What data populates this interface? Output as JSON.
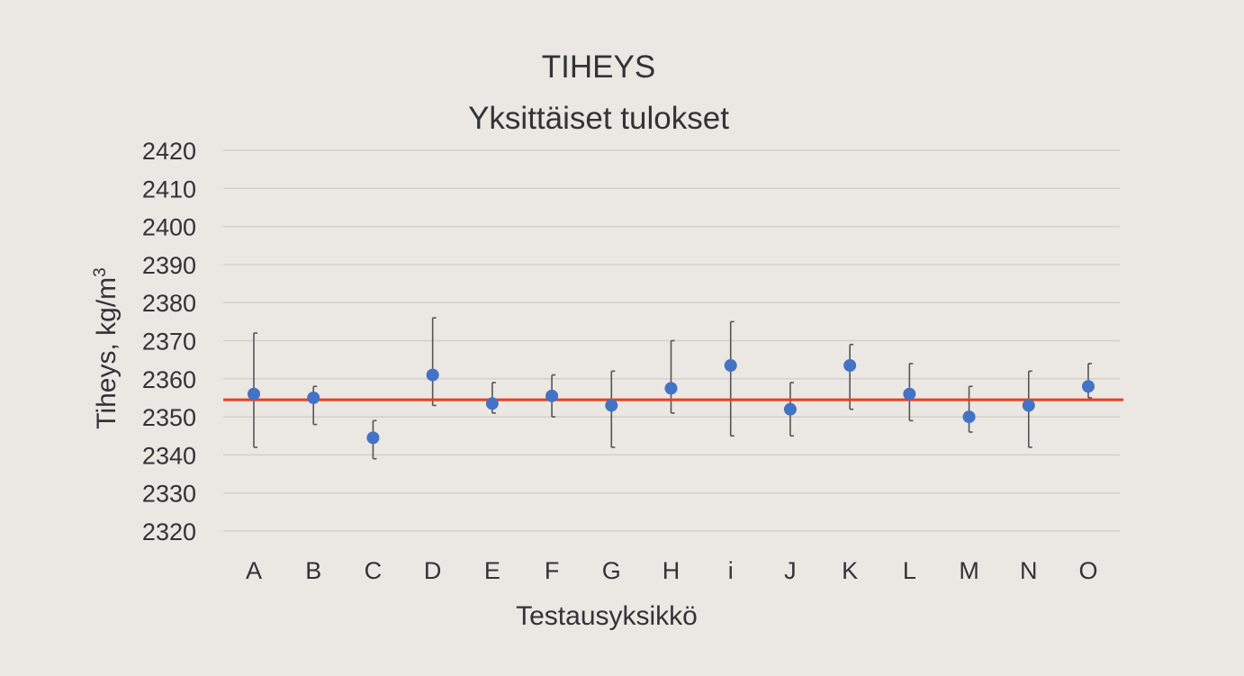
{
  "chart_data": {
    "type": "scatter",
    "title": "TIHEYS",
    "subtitle": "Yksittäiset tulokset",
    "xlabel": "Testausyksikkö",
    "ylabel": "Tiheys, kg/m",
    "ylabel_sup": "3",
    "ylim": [
      2320,
      2420
    ],
    "yticks": [
      2320,
      2330,
      2340,
      2350,
      2360,
      2370,
      2380,
      2390,
      2400,
      2410,
      2420
    ],
    "grid": true,
    "categories": [
      "A",
      "B",
      "C",
      "D",
      "E",
      "F",
      "G",
      "H",
      "i",
      "J",
      "K",
      "L",
      "M",
      "N",
      "O"
    ],
    "values": [
      2356,
      2355,
      2344.5,
      2361,
      2353.5,
      2355.5,
      2353,
      2357.5,
      2363.5,
      2352,
      2363.5,
      2356,
      2350,
      2353,
      2358
    ],
    "error_low": [
      2342,
      2348,
      2339,
      2353,
      2351,
      2350,
      2342,
      2351,
      2345,
      2345,
      2352,
      2349,
      2346,
      2342,
      2355
    ],
    "error_high": [
      2372,
      2358,
      2349,
      2376,
      2359,
      2361,
      2362,
      2370,
      2375,
      2359,
      2369,
      2364,
      2358,
      2362,
      2364
    ],
    "reference_line": 2354.5,
    "colors": {
      "point": "#4472c4",
      "error_bar": "#555555",
      "reference": "#e8401c",
      "grid": "#d3d0cc",
      "text": "#333333"
    }
  }
}
